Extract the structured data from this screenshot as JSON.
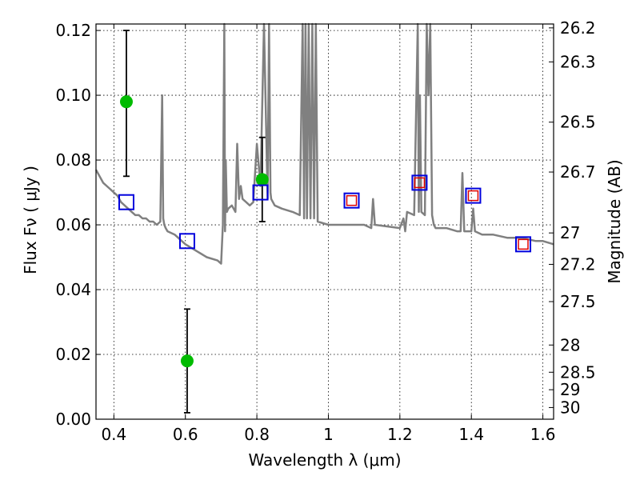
{
  "chart_data": {
    "type": "scatter",
    "xlabel": "Wavelength  λ (μm)",
    "ylabel": "Flux  Fν  ( μJy )",
    "y2label": "Magnitude (AB)",
    "xlim": [
      0.35,
      1.63
    ],
    "ylim": [
      0.0,
      0.122
    ],
    "grid": true,
    "x_ticks": [
      0.4,
      0.6,
      0.8,
      1.0,
      1.2,
      1.4,
      1.6
    ],
    "x_tick_labels": [
      "0.4",
      "0.6",
      "0.8",
      "1",
      "1.2",
      "1.4",
      "1.6"
    ],
    "y_ticks": [
      0.0,
      0.02,
      0.04,
      0.06,
      0.08,
      0.1,
      0.12
    ],
    "y_tick_labels": [
      "0.00",
      "0.02",
      "0.04",
      "0.06",
      "0.08",
      "0.10",
      "0.12"
    ],
    "y2_ticks": [
      {
        "flux": 0.1208,
        "label": "26.2"
      },
      {
        "flux": 0.1103,
        "label": "26.3"
      },
      {
        "flux": 0.0917,
        "label": "26.5"
      },
      {
        "flux": 0.0763,
        "label": "26.7"
      },
      {
        "flux": 0.0575,
        "label": "27"
      },
      {
        "flux": 0.0478,
        "label": "27.2"
      },
      {
        "flux": 0.0363,
        "label": "27.5"
      },
      {
        "flux": 0.0229,
        "label": "28"
      },
      {
        "flux": 0.0145,
        "label": "28.5"
      },
      {
        "flux": 0.0091,
        "label": "29"
      },
      {
        "flux": 0.0036,
        "label": "30"
      }
    ],
    "series": [
      {
        "kind": "line",
        "color": "#808080",
        "x": [
          0.35,
          0.36,
          0.37,
          0.38,
          0.39,
          0.4,
          0.41,
          0.42,
          0.43,
          0.44,
          0.45,
          0.46,
          0.47,
          0.48,
          0.49,
          0.5,
          0.51,
          0.52,
          0.53,
          0.535,
          0.538,
          0.541,
          0.545,
          0.55,
          0.57,
          0.6,
          0.63,
          0.66,
          0.69,
          0.7,
          0.705,
          0.709,
          0.711,
          0.713,
          0.716,
          0.72,
          0.73,
          0.74,
          0.745,
          0.75,
          0.755,
          0.76,
          0.77,
          0.78,
          0.79,
          0.8,
          0.81,
          0.82,
          0.83,
          0.834,
          0.838,
          0.84,
          0.85,
          0.87,
          0.9,
          0.92,
          0.928,
          0.932,
          0.936,
          0.94,
          0.945,
          0.95,
          0.955,
          0.96,
          0.965,
          0.97,
          1.0,
          1.05,
          1.1,
          1.12,
          1.125,
          1.13,
          1.2,
          1.21,
          1.215,
          1.22,
          1.24,
          1.25,
          1.253,
          1.256,
          1.26,
          1.27,
          1.275,
          1.28,
          1.285,
          1.29,
          1.295,
          1.3,
          1.33,
          1.36,
          1.37,
          1.375,
          1.38,
          1.4,
          1.405,
          1.41,
          1.43,
          1.46,
          1.5,
          1.54,
          1.58,
          1.6,
          1.63
        ],
        "values": [
          0.077,
          0.075,
          0.073,
          0.072,
          0.071,
          0.07,
          0.069,
          0.067,
          0.066,
          0.065,
          0.064,
          0.063,
          0.063,
          0.062,
          0.062,
          0.061,
          0.061,
          0.06,
          0.061,
          0.1,
          0.062,
          0.06,
          0.059,
          0.058,
          0.057,
          0.054,
          0.052,
          0.05,
          0.049,
          0.048,
          0.06,
          0.124,
          0.058,
          0.08,
          0.064,
          0.065,
          0.066,
          0.064,
          0.085,
          0.068,
          0.072,
          0.068,
          0.067,
          0.066,
          0.067,
          0.085,
          0.072,
          0.124,
          0.068,
          0.124,
          0.07,
          0.068,
          0.066,
          0.065,
          0.064,
          0.063,
          0.124,
          0.062,
          0.124,
          0.062,
          0.124,
          0.062,
          0.124,
          0.062,
          0.124,
          0.061,
          0.06,
          0.06,
          0.06,
          0.059,
          0.068,
          0.06,
          0.059,
          0.062,
          0.058,
          0.064,
          0.063,
          0.124,
          0.064,
          0.1,
          0.064,
          0.063,
          0.124,
          0.1,
          0.124,
          0.063,
          0.06,
          0.059,
          0.059,
          0.058,
          0.058,
          0.076,
          0.058,
          0.058,
          0.065,
          0.058,
          0.057,
          0.057,
          0.056,
          0.056,
          0.055,
          0.055,
          0.054
        ]
      },
      {
        "kind": "points_with_error",
        "color": "#00bb00",
        "x": [
          0.435,
          0.605,
          0.815
        ],
        "values": [
          0.098,
          0.018,
          0.074
        ],
        "err_low": [
          0.075,
          0.002,
          0.061
        ],
        "err_high": [
          0.12,
          0.034,
          0.087
        ]
      },
      {
        "kind": "open_squares",
        "color": "#0000dd",
        "x": [
          0.435,
          0.605,
          0.81,
          1.065,
          1.255,
          1.405,
          1.545
        ],
        "values": [
          0.067,
          0.055,
          0.07,
          0.0675,
          0.073,
          0.069,
          0.054
        ]
      },
      {
        "kind": "open_squares_small",
        "color": "#dd0000",
        "x": [
          1.065,
          1.255,
          1.405,
          1.545
        ],
        "values": [
          0.0675,
          0.073,
          0.069,
          0.054
        ]
      }
    ]
  }
}
